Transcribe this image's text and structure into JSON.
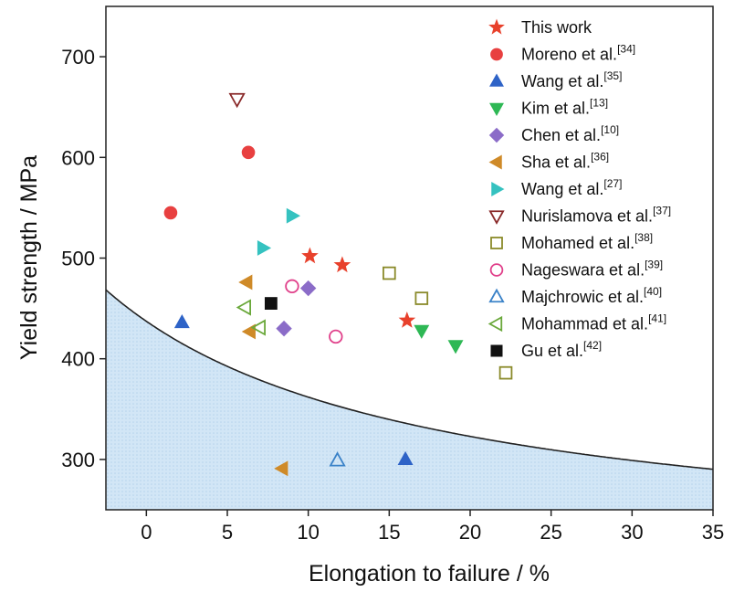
{
  "chart_data": {
    "type": "scatter",
    "title": "",
    "xlabel": "Elongation to failure / %",
    "ylabel": "Yield strength / MPa",
    "xlim": [
      -2.5,
      35
    ],
    "ylim": [
      250,
      750
    ],
    "xticks": [
      0,
      5,
      10,
      15,
      20,
      25,
      30,
      35
    ],
    "yticks": [
      300,
      400,
      500,
      600,
      700
    ],
    "xtick_labels": [
      "0",
      "5",
      "10",
      "15",
      "20",
      "25",
      "30",
      "35"
    ],
    "ytick_labels": [
      "300",
      "400",
      "500",
      "600",
      "700"
    ],
    "grid": false,
    "legend_position": "top-right",
    "background_region": "shaded below boundary curve",
    "boundary_curve": {
      "a": 5100,
      "b": 21.5,
      "c": 200,
      "form": "y = a / (x + b) + c"
    },
    "series": [
      {
        "name": "This work",
        "ref": "",
        "marker": "star",
        "color": "#e8412c",
        "filled": true,
        "points": [
          [
            10.1,
            502
          ],
          [
            12.1,
            493
          ],
          [
            16.1,
            438
          ]
        ]
      },
      {
        "name": "Moreno et al.",
        "ref": "[34]",
        "marker": "circle",
        "color": "#e84040",
        "filled": true,
        "points": [
          [
            1.5,
            545
          ],
          [
            6.3,
            605
          ]
        ]
      },
      {
        "name": "Wang et al.",
        "ref": "[35]",
        "marker": "triangle-up",
        "color": "#2e63c7",
        "filled": true,
        "points": [
          [
            2.2,
            436
          ],
          [
            16.0,
            300
          ]
        ]
      },
      {
        "name": "Kim et al.",
        "ref": "[13]",
        "marker": "triangle-down",
        "color": "#2eb855",
        "filled": true,
        "points": [
          [
            17.0,
            428
          ],
          [
            19.1,
            413
          ]
        ]
      },
      {
        "name": "Chen et al.",
        "ref": "[10]",
        "marker": "diamond",
        "color": "#8b6cc8",
        "filled": true,
        "points": [
          [
            8.5,
            430
          ],
          [
            10.0,
            470
          ]
        ]
      },
      {
        "name": "Sha et al.",
        "ref": "[36]",
        "marker": "triangle-left",
        "color": "#cf8a28",
        "filled": true,
        "points": [
          [
            6.2,
            476
          ],
          [
            6.4,
            427
          ],
          [
            8.4,
            291
          ]
        ]
      },
      {
        "name": "Wang et al.",
        "ref": "[27]",
        "marker": "triangle-right",
        "color": "#35c2c0",
        "filled": true,
        "points": [
          [
            7.2,
            510
          ],
          [
            9.0,
            542
          ]
        ]
      },
      {
        "name": "Nurislamova et al.",
        "ref": "[37]",
        "marker": "triangle-down",
        "color": "#8a2a2a",
        "filled": false,
        "points": [
          [
            5.6,
            658
          ]
        ]
      },
      {
        "name": "Mohamed et al.",
        "ref": "[38]",
        "marker": "square",
        "color": "#8a8a2a",
        "filled": false,
        "points": [
          [
            15.0,
            485
          ],
          [
            17.0,
            460
          ],
          [
            22.2,
            386
          ]
        ]
      },
      {
        "name": "Nageswara et al.",
        "ref": "[39]",
        "marker": "circle",
        "color": "#e0408a",
        "filled": false,
        "points": [
          [
            9.0,
            472
          ],
          [
            11.7,
            422
          ]
        ]
      },
      {
        "name": "Majchrowic et al.",
        "ref": "[40]",
        "marker": "triangle-up",
        "color": "#3a82c8",
        "filled": false,
        "points": [
          [
            11.8,
            299
          ]
        ]
      },
      {
        "name": "Mohammad et al.",
        "ref": "[41]",
        "marker": "triangle-left",
        "color": "#6aa83a",
        "filled": false,
        "points": [
          [
            6.1,
            451
          ],
          [
            7.0,
            431
          ]
        ]
      },
      {
        "name": "Gu et al.",
        "ref": "[42]",
        "marker": "square",
        "color": "#111111",
        "filled": true,
        "points": [
          [
            7.7,
            455
          ]
        ]
      }
    ]
  }
}
